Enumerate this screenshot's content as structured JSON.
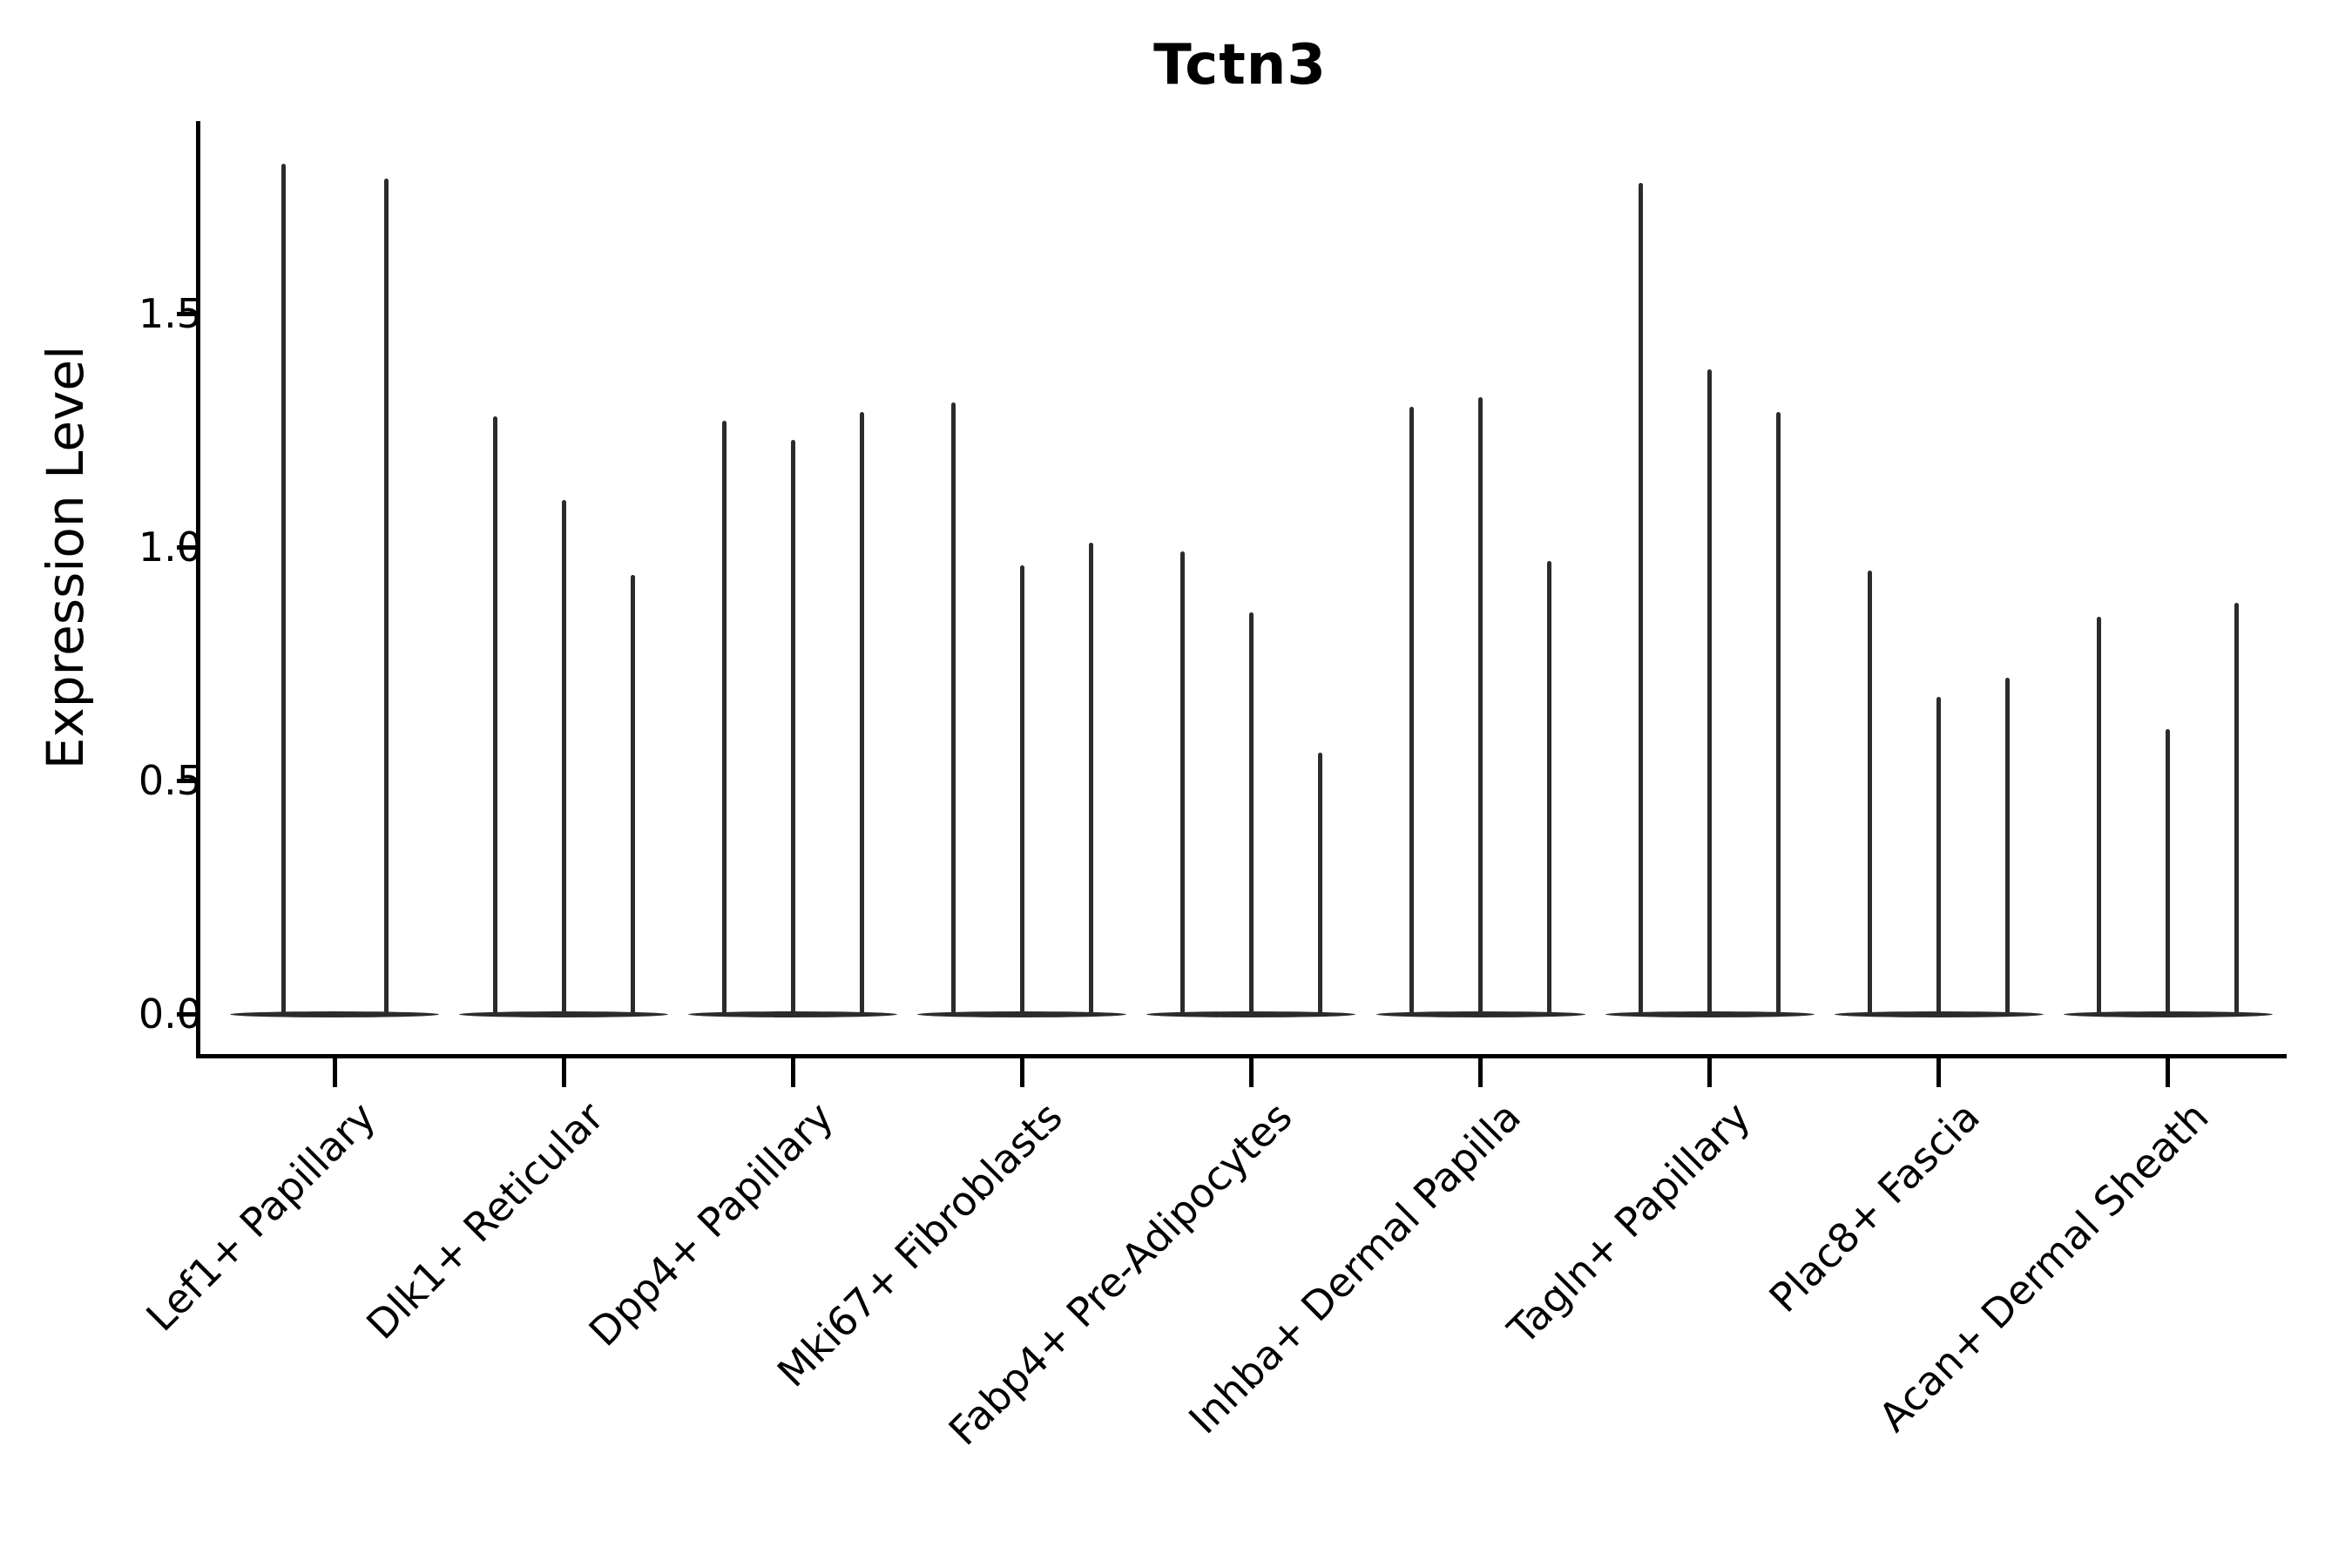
{
  "title": "Tctn3",
  "y_axis": {
    "label": "Expression Level",
    "tick_labels": [
      "0.0",
      "0.5",
      "1.0",
      "1.5"
    ]
  },
  "chart_data": {
    "type": "violin",
    "title": "Tctn3",
    "xlabel": "",
    "ylabel": "Expression Level",
    "ylim": [
      -0.09,
      1.91
    ],
    "yticks": [
      0.0,
      0.5,
      1.0,
      1.5
    ],
    "grid": false,
    "legend_position": "none",
    "description": "Stacked/split violin plot of Tctn3 expression; each cell-type group contains narrow violins (mostly zero-inflated) whose thin spikes reach the listed maximum expression values; a flattened violin body sits at 0 for every group.",
    "categories": [
      "Lef1+ Papillary",
      "Dlk1+ Reticular",
      "Dpp4+ Papillary",
      "Mki67+ Fibroblasts",
      "Fabp4+ Pre-Adipocytes",
      "Inhba+ Dermal Papilla",
      "Tagln+ Papillary",
      "Plac8+ Fascia",
      "Acan+ Dermal Sheath"
    ],
    "series": [
      {
        "category": "Lef1+ Papillary",
        "violin_peaks": [
          1.82,
          1.79
        ]
      },
      {
        "category": "Dlk1+ Reticular",
        "violin_peaks": [
          1.28,
          1.1,
          0.94
        ]
      },
      {
        "category": "Dpp4+ Papillary",
        "violin_peaks": [
          1.27,
          1.23,
          1.29
        ]
      },
      {
        "category": "Mki67+ Fibroblasts",
        "violin_peaks": [
          1.31,
          0.96,
          1.01
        ]
      },
      {
        "category": "Fabp4+ Pre-Adipocytes",
        "violin_peaks": [
          0.99,
          0.86,
          0.56
        ]
      },
      {
        "category": "Inhba+ Dermal Papilla",
        "violin_peaks": [
          1.3,
          1.32,
          0.97
        ]
      },
      {
        "category": "Tagln+ Papillary",
        "violin_peaks": [
          1.78,
          1.38,
          1.29
        ]
      },
      {
        "category": "Plac8+ Fascia",
        "violin_peaks": [
          0.95,
          0.68,
          0.72
        ]
      },
      {
        "category": "Acan+ Dermal Sheath",
        "violin_peaks": [
          0.85,
          0.61,
          0.88
        ]
      }
    ]
  },
  "style": {
    "violin_color": "#2b2b2b",
    "axis_color": "#000000",
    "background_color": "#ffffff"
  }
}
